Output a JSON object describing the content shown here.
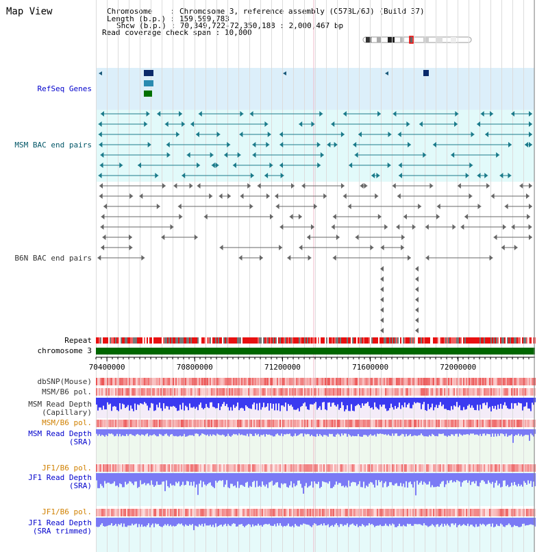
{
  "page": {
    "title": "Map View"
  },
  "info": {
    "chromosome_label": "Chromosome",
    "chromosome_value": "Chromosome 3, reference assembly (C57BL/6J) (Build 37)",
    "length_label": "Length (b.p.)",
    "length_value": "159,599,783",
    "show_label": "Show (b.p.)",
    "show_value": "70,349,722-72,350,188 : 2,000,467 bp",
    "coverage_label": "Read coverage check span",
    "coverage_value": "10,000"
  },
  "tracks": {
    "refseq": "RefSeq Genes",
    "msm_bac": "MSM BAC end pairs",
    "b6n_bac": "B6N BAC end pairs",
    "repeat": "Repeat",
    "chromosome": "chromosome 3",
    "dbsnp": "dbSNP(Mouse)",
    "msm_b6_pol_1": "MSM/B6 pol.",
    "msm_depth_cap": "MSM Read Depth\n(Capillary)",
    "msm_b6_pol_2": "MSM/B6 pol.",
    "msm_depth_sra": "MSM Read Depth\n(SRA)",
    "jf1_b6_pol_1": "JF1/B6 pol.",
    "jf1_depth_sra": "JF1 Read Depth\n(SRA)",
    "jf1_b6_pol_2": "JF1/B6 pol.",
    "jf1_depth_trim": "JF1 Read Depth\n(SRA trimmed)"
  },
  "axis": {
    "ticks": [
      {
        "pos": 70400000,
        "label": "70400000"
      },
      {
        "pos": 70800000,
        "label": "70800000"
      },
      {
        "pos": 71200000,
        "label": "71200000"
      },
      {
        "pos": 71600000,
        "label": "71600000"
      },
      {
        "pos": 72000000,
        "label": "72000000"
      }
    ],
    "start": 70349722,
    "end": 72350188
  },
  "colors": {
    "refseq_bg": "#dceffa",
    "msm_bg": "#e2fafa",
    "teal": "#1a7a8a",
    "gray": "#666666",
    "green": "#006600",
    "snp_red": "#e83030",
    "depth_blue": "#3a3af0",
    "depth_light": "#7a7af5"
  }
}
